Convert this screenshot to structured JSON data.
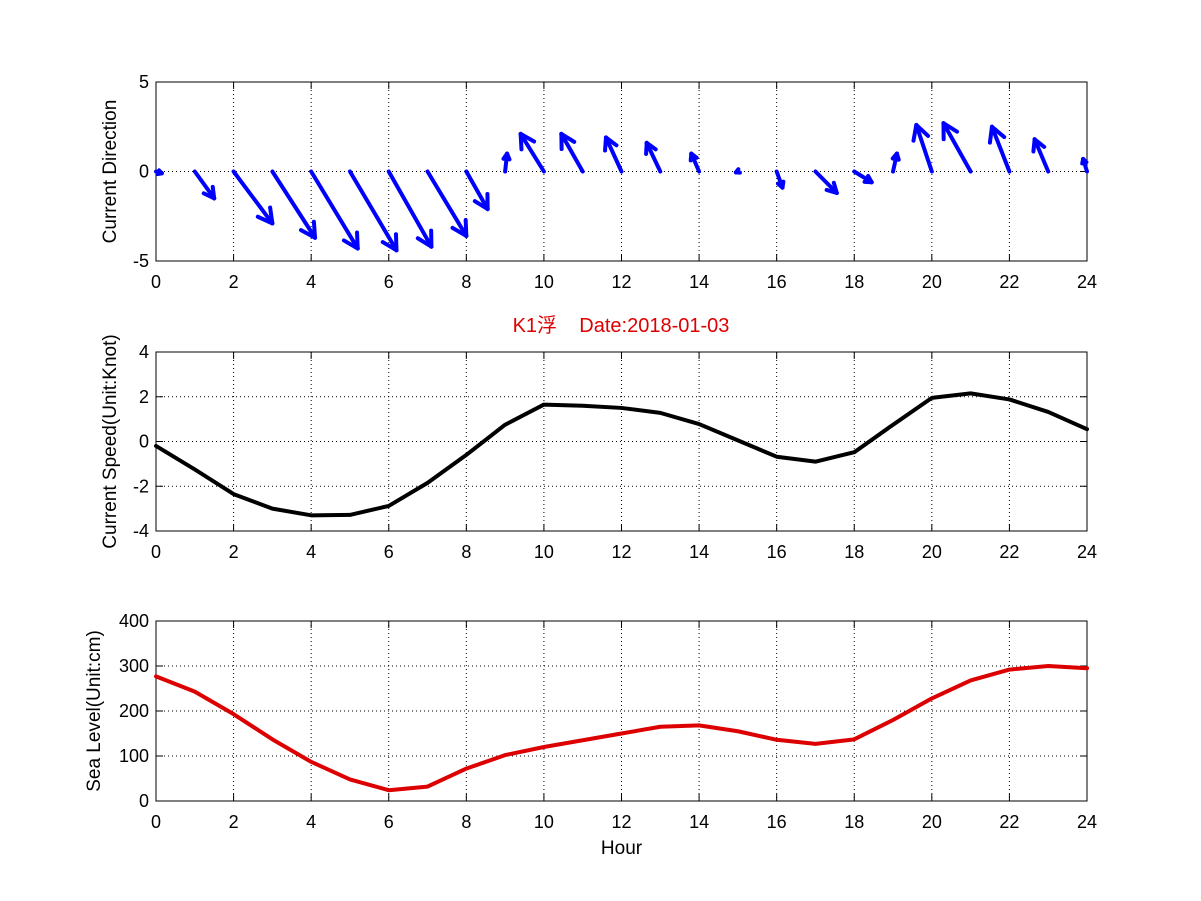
{
  "colors": {
    "direction_arrows": "#0000ff",
    "speed_line": "#000000",
    "sea_level_line": "#dd0000",
    "title": "#dd0000"
  },
  "chart_data": [
    {
      "type": "quiver",
      "title": "",
      "xlabel": "",
      "ylabel": "Current Direction",
      "xlim": [
        0,
        24
      ],
      "ylim": [
        -5,
        5
      ],
      "xticks": [
        0,
        2,
        4,
        6,
        8,
        10,
        12,
        14,
        16,
        18,
        20,
        22,
        24
      ],
      "yticks": [
        -5,
        0,
        5
      ],
      "grid": true,
      "x": [
        0,
        1,
        2,
        3,
        4,
        5,
        6,
        7,
        8,
        9,
        10,
        11,
        12,
        13,
        14,
        15,
        16,
        17,
        18,
        19,
        20,
        21,
        22,
        23,
        24
      ],
      "u": [
        0.15,
        0.5,
        1.0,
        1.1,
        1.2,
        1.2,
        1.1,
        1.0,
        0.55,
        0.05,
        -0.6,
        -0.55,
        -0.4,
        -0.35,
        -0.2,
        -0.05,
        0.15,
        0.55,
        0.45,
        0.1,
        -0.4,
        -0.7,
        -0.45,
        -0.35,
        -0.1
      ],
      "v": [
        -0.1,
        -1.5,
        -2.9,
        -3.7,
        -4.3,
        -4.4,
        -4.2,
        -3.6,
        -2.1,
        1.0,
        2.1,
        2.1,
        1.9,
        1.6,
        1.0,
        -0.05,
        -0.9,
        -1.2,
        -0.6,
        1.0,
        2.6,
        2.7,
        2.5,
        1.8,
        0.7
      ]
    },
    {
      "type": "line",
      "title": "K1浮    Date:2018-01-03",
      "xlabel": "",
      "ylabel": "Current Speed(Unit:Knot)",
      "xlim": [
        0,
        24
      ],
      "ylim": [
        -4,
        4
      ],
      "xticks": [
        0,
        2,
        4,
        6,
        8,
        10,
        12,
        14,
        16,
        18,
        20,
        22,
        24
      ],
      "yticks": [
        -4,
        -2,
        0,
        2,
        4
      ],
      "grid": true,
      "x": [
        0,
        1,
        2,
        3,
        4,
        5,
        6,
        7,
        8,
        9,
        10,
        11,
        12,
        13,
        14,
        15,
        16,
        17,
        18,
        19,
        20,
        21,
        22,
        23,
        24
      ],
      "y": [
        -0.2,
        -1.25,
        -2.35,
        -3.0,
        -3.3,
        -3.28,
        -2.88,
        -1.85,
        -0.6,
        0.75,
        1.65,
        1.6,
        1.5,
        1.28,
        0.78,
        0.05,
        -0.68,
        -0.9,
        -0.48,
        0.75,
        1.95,
        2.15,
        1.88,
        1.32,
        0.55
      ]
    },
    {
      "type": "line",
      "title": "",
      "xlabel": "Hour",
      "ylabel": "Sea Level(Unit:cm)",
      "xlim": [
        0,
        24
      ],
      "ylim": [
        0,
        400
      ],
      "xticks": [
        0,
        2,
        4,
        6,
        8,
        10,
        12,
        14,
        16,
        18,
        20,
        22,
        24
      ],
      "yticks": [
        0,
        100,
        200,
        300,
        400
      ],
      "grid": true,
      "x": [
        0,
        1,
        2,
        3,
        4,
        5,
        6,
        7,
        8,
        9,
        10,
        11,
        12,
        13,
        14,
        15,
        16,
        17,
        18,
        19,
        20,
        21,
        22,
        23,
        24
      ],
      "y": [
        277,
        243,
        193,
        137,
        87,
        48,
        24,
        32,
        72,
        102,
        120,
        135,
        150,
        165,
        168,
        155,
        136,
        127,
        137,
        180,
        228,
        268,
        292,
        300,
        295
      ]
    }
  ]
}
